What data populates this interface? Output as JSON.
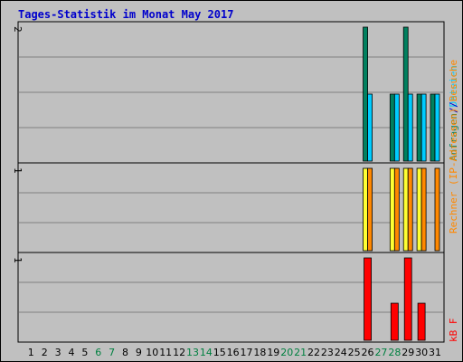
{
  "colors": {
    "background": "#C0C0C0",
    "grid": "#808080",
    "frame": "#000000",
    "title": "#0000CC",
    "weekday": "#000000",
    "weekend": "#008040",
    "hits": "#00805F",
    "files": "#00CCFF",
    "sites": "#FFFF33",
    "visits": "#FF8800",
    "kbytes": "#FF0000"
  },
  "chart_data": {
    "type": "bar",
    "title": "Tages-Statistik im Monat May 2017",
    "days": [
      "1",
      "2",
      "3",
      "4",
      "5",
      "6",
      "7",
      "8",
      "9",
      "10",
      "11",
      "12",
      "13",
      "14",
      "15",
      "16",
      "17",
      "18",
      "19",
      "20",
      "21",
      "22",
      "23",
      "24",
      "25",
      "26",
      "27",
      "28",
      "29",
      "30",
      "31"
    ],
    "weekend_days": [
      "6",
      "7",
      "13",
      "14",
      "20",
      "21",
      "27",
      "28"
    ],
    "panels": [
      {
        "name": "requests",
        "ymax_label": "2",
        "ymax": 2,
        "series": [
          {
            "name": "Anfragen",
            "color_key": "hits",
            "values": [
              0,
              0,
              0,
              0,
              0,
              0,
              0,
              0,
              0,
              0,
              0,
              0,
              0,
              0,
              0,
              0,
              0,
              0,
              0,
              0,
              0,
              0,
              0,
              0,
              0,
              2,
              0,
              1,
              2,
              1,
              1
            ]
          },
          {
            "name": "Dateien",
            "color_key": "files",
            "values": [
              0,
              0,
              0,
              0,
              0,
              0,
              0,
              0,
              0,
              0,
              0,
              0,
              0,
              0,
              0,
              0,
              0,
              0,
              0,
              0,
              0,
              0,
              0,
              0,
              0,
              1,
              0,
              1,
              1,
              1,
              1
            ]
          }
        ]
      },
      {
        "name": "visitors",
        "ymax_label": "1",
        "ymax": 1,
        "series": [
          {
            "name": "Rechner (IP-Adressen)",
            "color_key": "sites",
            "values": [
              0,
              0,
              0,
              0,
              0,
              0,
              0,
              0,
              0,
              0,
              0,
              0,
              0,
              0,
              0,
              0,
              0,
              0,
              0,
              0,
              0,
              0,
              0,
              0,
              0,
              1,
              0,
              1,
              1,
              1,
              0
            ]
          },
          {
            "name": "Besuche",
            "color_key": "visits",
            "values": [
              0,
              0,
              0,
              0,
              0,
              0,
              0,
              0,
              0,
              0,
              0,
              0,
              0,
              0,
              0,
              0,
              0,
              0,
              0,
              0,
              0,
              0,
              0,
              0,
              0,
              1,
              0,
              1,
              1,
              1,
              1
            ]
          }
        ]
      },
      {
        "name": "traffic",
        "ymax_label": "1",
        "ymax": 1,
        "series": [
          {
            "name": "kB F",
            "color_key": "kbytes",
            "values": [
              0,
              0,
              0,
              0,
              0,
              0,
              0,
              0,
              0,
              0,
              0,
              0,
              0,
              0,
              0,
              0,
              0,
              0,
              0,
              0,
              0,
              0,
              0,
              0,
              0,
              1,
              0,
              0.45,
              1,
              0.45,
              0
            ]
          }
        ]
      }
    ],
    "right_labels": {
      "top": [
        {
          "text": "Anfragen",
          "color_key": "hits"
        },
        {
          "text": "/",
          "color_key": "title"
        },
        {
          "text": "Dateien",
          "color_key": "files"
        }
      ],
      "middle": [
        {
          "text": "Rechner (IP-Adressen)",
          "color_key": "visits"
        },
        {
          "text": "/",
          "color_key": "title"
        },
        {
          "text": "Besuche",
          "color_key": "visits"
        }
      ],
      "bottom": [
        {
          "text": "kB F",
          "color_key": "kbytes"
        }
      ]
    }
  }
}
